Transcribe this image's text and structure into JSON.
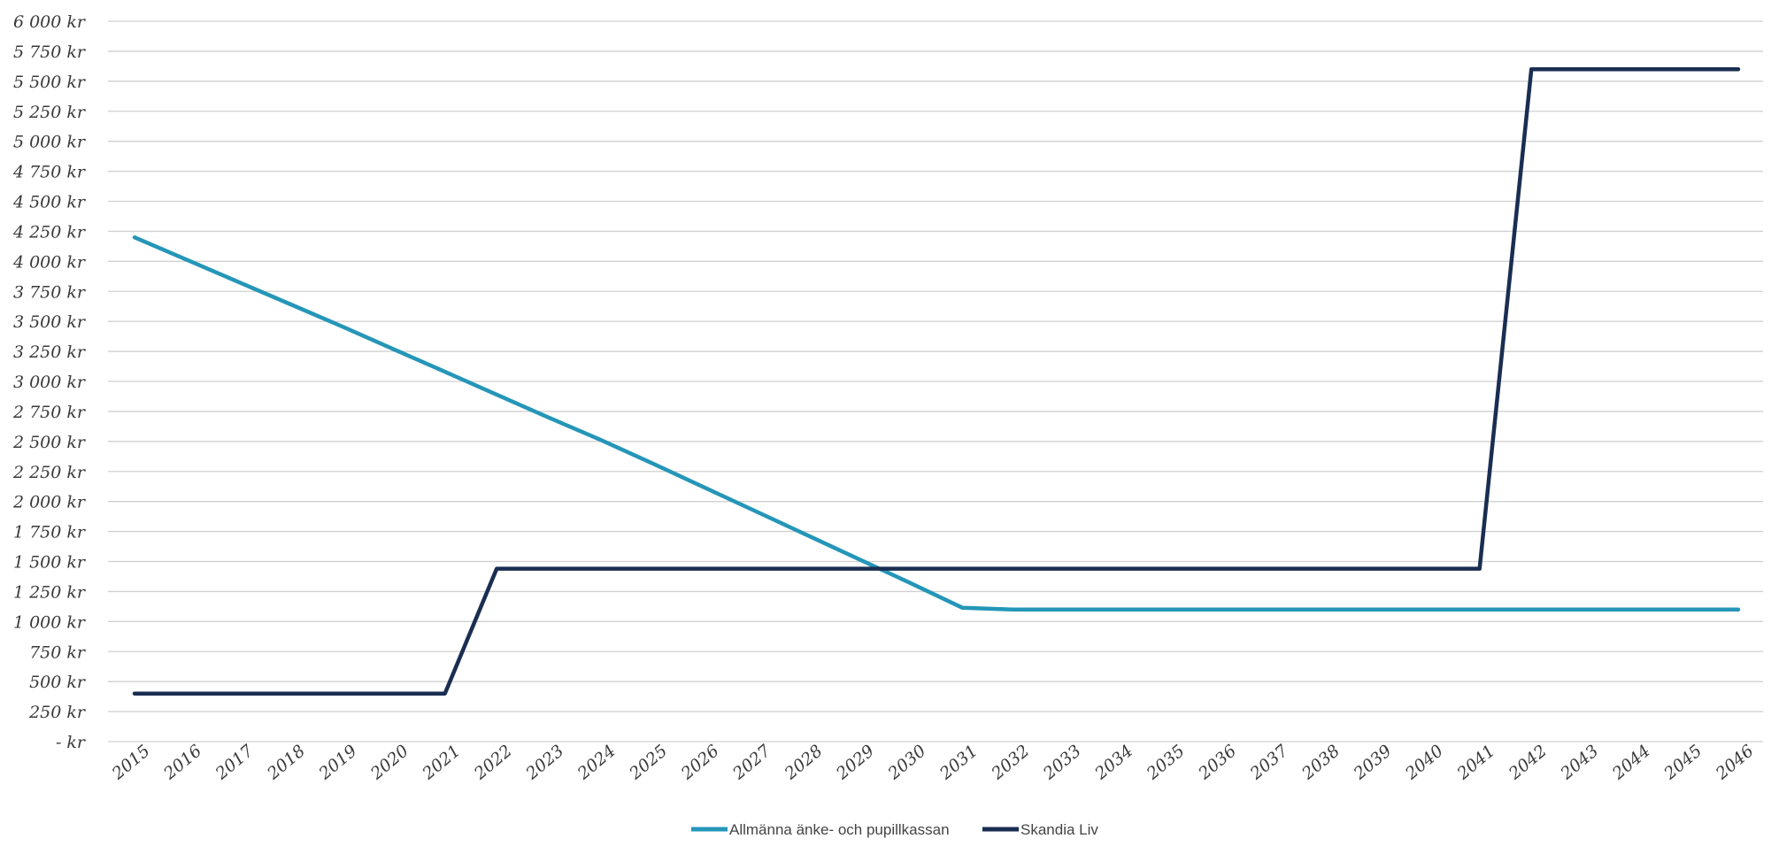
{
  "chart_data": {
    "type": "line",
    "title": "",
    "xlabel": "",
    "ylabel": "",
    "ylim": [
      0,
      6000
    ],
    "grid": true,
    "legend_position": "bottom",
    "y_ticks": [
      0,
      250,
      500,
      750,
      1000,
      1250,
      1500,
      1750,
      2000,
      2250,
      2500,
      2750,
      3000,
      3250,
      3500,
      3750,
      4000,
      4250,
      4500,
      4750,
      5000,
      5250,
      5500,
      5750,
      6000
    ],
    "y_tick_labels": [
      "-  kr",
      "250 kr",
      "500 kr",
      "750 kr",
      "1 000 kr",
      "1 250 kr",
      "1 500 kr",
      "1 750 kr",
      "2 000 kr",
      "2 250 kr",
      "2 500 kr",
      "2 750 kr",
      "3 000 kr",
      "3 250 kr",
      "3 500 kr",
      "3 750 kr",
      "4 000 kr",
      "4 250 kr",
      "4 500 kr",
      "4 750 kr",
      "5 000 kr",
      "5 250 kr",
      "5 500 kr",
      "5 750 kr",
      "6 000 kr"
    ],
    "categories": [
      "2015",
      "2016",
      "2017",
      "2018",
      "2019",
      "2020",
      "2021",
      "2022",
      "2023",
      "2024",
      "2025",
      "2026",
      "2027",
      "2028",
      "2029",
      "2030",
      "2031",
      "2032",
      "2033",
      "2034",
      "2035",
      "2036",
      "2037",
      "2038",
      "2039",
      "2040",
      "2041",
      "2042",
      "2043",
      "2044",
      "2045",
      "2046"
    ],
    "series": [
      {
        "name": "Allmänna änke- och pupillkassan",
        "color": "#2596b8",
        "values": [
          4200,
          4015,
          3830,
          3645,
          3460,
          3270,
          3080,
          2890,
          2700,
          2515,
          2320,
          2120,
          1920,
          1720,
          1520,
          1320,
          1115,
          1100,
          1100,
          1100,
          1100,
          1100,
          1100,
          1100,
          1100,
          1100,
          1100,
          1100,
          1100,
          1100,
          1100,
          1100
        ]
      },
      {
        "name": "Skandia Liv",
        "color": "#1a2e52",
        "values": [
          400,
          400,
          400,
          400,
          400,
          400,
          400,
          1440,
          1440,
          1440,
          1440,
          1440,
          1440,
          1440,
          1440,
          1440,
          1440,
          1440,
          1440,
          1440,
          1440,
          1440,
          1440,
          1440,
          1440,
          1440,
          1440,
          5600,
          5600,
          5600,
          5600,
          5600
        ]
      }
    ]
  }
}
